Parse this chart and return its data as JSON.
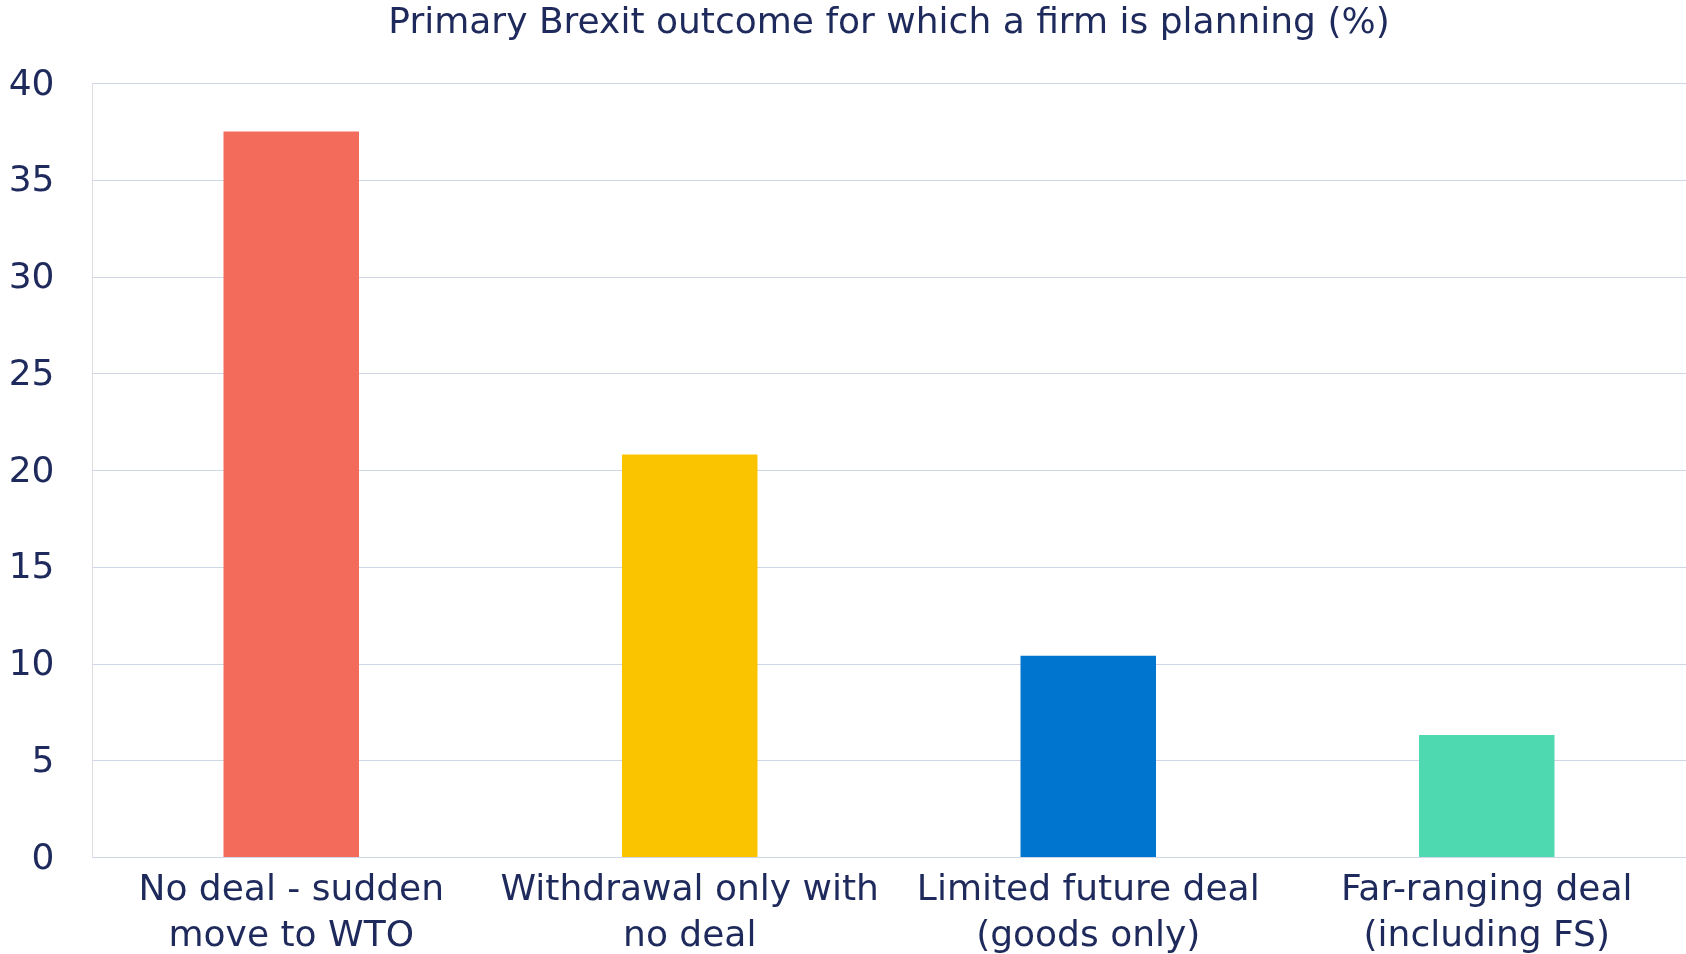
{
  "chart_data": {
    "type": "bar",
    "title": "Primary Brexit outcome for which a firm is planning (%)",
    "categories": [
      "No deal - sudden\nmove to WTO",
      "Withdrawal only with\nno deal",
      "Limited future deal\n(goods only)",
      "Far-ranging deal\n(including FS)"
    ],
    "values": [
      37.5,
      20.8,
      10.4,
      6.3
    ],
    "colors": [
      "#f26b5b",
      "#fbc400",
      "#0075cf",
      "#4ed9b0"
    ],
    "ylim": [
      0,
      40
    ],
    "yticks": [
      0,
      5,
      10,
      15,
      20,
      25,
      30,
      35,
      40
    ],
    "grid": "y",
    "legend": false
  }
}
